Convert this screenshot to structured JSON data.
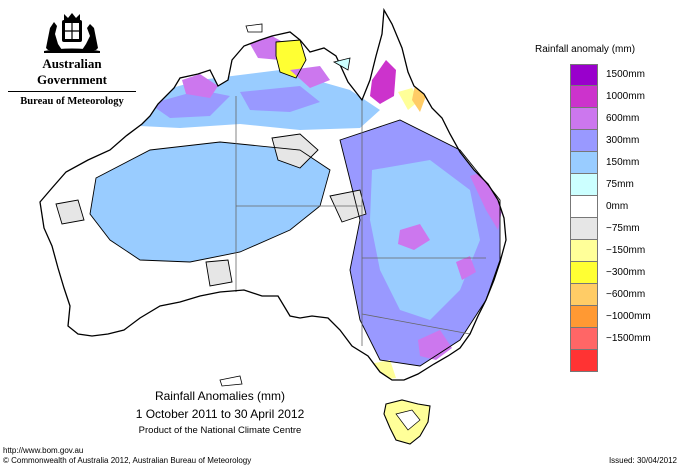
{
  "header": {
    "crest_icon": "commonwealth-coat-of-arms-icon",
    "government": "Australian Government",
    "bureau": "Bureau of Meteorology"
  },
  "legend": {
    "title": "Rainfall anomaly (mm)",
    "items": [
      {
        "label": "1500mm",
        "color": "#9900cc"
      },
      {
        "label": "1000mm",
        "color": "#cc33cc"
      },
      {
        "label": "600mm",
        "color": "#cc77ee"
      },
      {
        "label": "300mm",
        "color": "#9999ff"
      },
      {
        "label": "150mm",
        "color": "#99ccff"
      },
      {
        "label": "75mm",
        "color": "#ccffff"
      },
      {
        "label": "0mm",
        "color": "#ffffff"
      },
      {
        "label": "−75mm",
        "color": "#e6e6e6"
      },
      {
        "label": "−150mm",
        "color": "#ffff99"
      },
      {
        "label": "−300mm",
        "color": "#ffff33"
      },
      {
        "label": "−600mm",
        "color": "#ffcc66"
      },
      {
        "label": "−1000mm",
        "color": "#ff9933"
      },
      {
        "label": "−1500mm",
        "color": "#ff6666"
      },
      {
        "label": "",
        "color": "#ff3333"
      }
    ]
  },
  "caption": {
    "title": "Rainfall Anomalies (mm)",
    "period": "1 October 2011 to 30 April 2012",
    "product": "Product of the National Climate Centre"
  },
  "footer": {
    "url": "http://www.bom.gov.au",
    "copyright": "© Commonwealth of Australia 2012, Australian Bureau of Meteorology",
    "issued": "Issued: 30/04/2012"
  }
}
